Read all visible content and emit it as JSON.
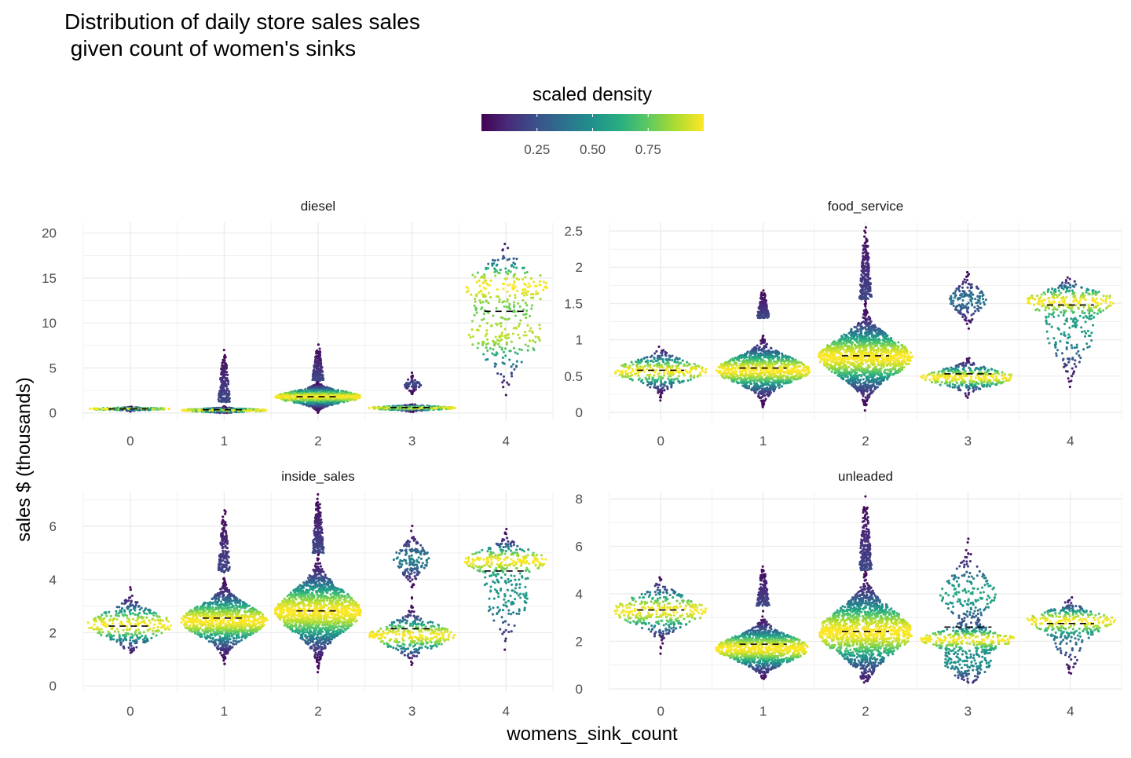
{
  "chart_data": {
    "type": "scatter",
    "subtype": "beeswarm",
    "title_lines": [
      "Distribution of daily store sales sales",
      " given count of women's sinks"
    ],
    "xlabel": "womens_sink_count",
    "ylabel": "sales $ (thousands)",
    "x_categories": [
      "0",
      "1",
      "2",
      "3",
      "4"
    ],
    "legend": {
      "title": "scaled density",
      "placement": "top",
      "colorscale": "viridis",
      "ticks": [
        "0.25",
        "0.50",
        "0.75"
      ],
      "tick_values": [
        0.25,
        0.5,
        0.75
      ],
      "range": [
        0.0,
        1.0
      ]
    },
    "median_line_style": "dashed black",
    "grid": true,
    "panels": [
      {
        "name": "diesel",
        "ylim": [
          -0.9,
          21.2
        ],
        "yticks": [
          0,
          5,
          10,
          15,
          20
        ],
        "groups": [
          {
            "x": "0",
            "median": 0.45,
            "n": 220,
            "modes": [
              {
                "c": 0.45,
                "sd": 0.09,
                "w": 1.0
              }
            ],
            "min": 0.05,
            "max": 0.85,
            "tail": 0,
            "tailTop": 0,
            "halfWidth": 0.45
          },
          {
            "x": "1",
            "median": 0.35,
            "n": 520,
            "modes": [
              {
                "c": 0.3,
                "sd": 0.14,
                "w": 1.0
              }
            ],
            "min": 0.0,
            "max": 1.2,
            "tail": 190,
            "tailTop": 7.0,
            "halfWidth": 0.46
          },
          {
            "x": "2",
            "median": 1.8,
            "n": 1100,
            "modes": [
              {
                "c": 1.8,
                "sd": 0.6,
                "w": 1.0
              }
            ],
            "min": 0.0,
            "max": 3.6,
            "tail": 170,
            "tailTop": 7.6,
            "halfWidth": 0.46
          },
          {
            "x": "3",
            "median": 0.6,
            "n": 420,
            "modes": [
              {
                "c": 0.55,
                "sd": 0.17,
                "w": 0.82
              },
              {
                "c": 3.2,
                "sd": 0.45,
                "w": 0.18
              }
            ],
            "min": 0.05,
            "max": 4.5,
            "tail": 0,
            "tailTop": 0,
            "halfWidth": 0.46
          },
          {
            "x": "4",
            "median": 11.3,
            "n": 360,
            "modes": [
              {
                "c": 14.4,
                "sd": 1.8,
                "w": 0.5
              },
              {
                "c": 8.8,
                "sd": 2.6,
                "w": 0.5
              }
            ],
            "min": 0.4,
            "max": 20.9,
            "tail": 0,
            "tailTop": 0,
            "halfWidth": 0.44
          }
        ]
      },
      {
        "name": "food_service",
        "ylim": [
          -0.12,
          2.62
        ],
        "yticks": [
          0,
          0.5,
          1,
          1.5,
          2,
          2.5
        ],
        "yticklabels": [
          "0",
          "0.5",
          "1",
          "1.5",
          "2",
          "2.5"
        ],
        "groups": [
          {
            "x": "0",
            "median": 0.58,
            "n": 360,
            "modes": [
              {
                "c": 0.57,
                "sd": 0.13,
                "w": 1.0
              }
            ],
            "min": 0.15,
            "max": 0.95,
            "tail": 0,
            "tailTop": 0,
            "halfWidth": 0.46
          },
          {
            "x": "1",
            "median": 0.61,
            "n": 1100,
            "modes": [
              {
                "c": 0.58,
                "sd": 0.17,
                "w": 1.0
              }
            ],
            "min": 0.06,
            "max": 1.3,
            "tail": 180,
            "tailTop": 1.68,
            "halfWidth": 0.46
          },
          {
            "x": "2",
            "median": 0.78,
            "n": 1500,
            "modes": [
              {
                "c": 0.76,
                "sd": 0.25,
                "w": 1.0
              }
            ],
            "min": 0.0,
            "max": 1.55,
            "tail": 230,
            "tailTop": 2.55,
            "halfWidth": 0.46
          },
          {
            "x": "3",
            "median": 0.53,
            "n": 520,
            "modes": [
              {
                "c": 0.48,
                "sd": 0.1,
                "w": 0.72
              },
              {
                "c": 1.55,
                "sd": 0.16,
                "w": 0.28
              }
            ],
            "min": 0.08,
            "max": 1.97,
            "tail": 0,
            "tailTop": 0,
            "halfWidth": 0.46
          },
          {
            "x": "4",
            "median": 1.48,
            "n": 360,
            "modes": [
              {
                "c": 1.55,
                "sd": 0.13,
                "w": 0.6
              },
              {
                "c": 1.1,
                "sd": 0.3,
                "w": 0.4
              }
            ],
            "min": 0.28,
            "max": 2.05,
            "tail": 0,
            "tailTop": 0,
            "halfWidth": 0.44
          }
        ]
      },
      {
        "name": "inside_sales",
        "ylim": [
          -0.2,
          7.3
        ],
        "yticks": [
          0,
          2,
          4,
          6
        ],
        "groups": [
          {
            "x": "0",
            "median": 2.25,
            "n": 330,
            "modes": [
              {
                "c": 2.3,
                "sd": 0.45,
                "w": 1.0
              }
            ],
            "min": 0.7,
            "max": 3.9,
            "tail": 0,
            "tailTop": 0,
            "halfWidth": 0.46
          },
          {
            "x": "1",
            "median": 2.55,
            "n": 1100,
            "modes": [
              {
                "c": 2.45,
                "sd": 0.55,
                "w": 1.0
              }
            ],
            "min": 0.45,
            "max": 4.3,
            "tail": 160,
            "tailTop": 6.6,
            "halfWidth": 0.46
          },
          {
            "x": "2",
            "median": 2.82,
            "n": 1500,
            "modes": [
              {
                "c": 2.8,
                "sd": 0.75,
                "w": 1.0
              }
            ],
            "min": 0.0,
            "max": 5.0,
            "tail": 210,
            "tailTop": 7.2,
            "halfWidth": 0.46
          },
          {
            "x": "3",
            "median": 2.15,
            "n": 520,
            "modes": [
              {
                "c": 1.9,
                "sd": 0.4,
                "w": 0.7
              },
              {
                "c": 4.75,
                "sd": 0.45,
                "w": 0.3
              }
            ],
            "min": 0.55,
            "max": 6.05,
            "tail": 0,
            "tailTop": 0,
            "halfWidth": 0.46
          },
          {
            "x": "4",
            "median": 4.32,
            "n": 360,
            "modes": [
              {
                "c": 4.75,
                "sd": 0.35,
                "w": 0.6
              },
              {
                "c": 3.4,
                "sd": 0.9,
                "w": 0.4
              }
            ],
            "min": 1.1,
            "max": 6.2,
            "tail": 0,
            "tailTop": 0,
            "halfWidth": 0.44
          }
        ]
      },
      {
        "name": "unleaded",
        "ylim": [
          -0.1,
          8.3
        ],
        "yticks": [
          0,
          2,
          4,
          6,
          8
        ],
        "groups": [
          {
            "x": "0",
            "median": 3.32,
            "n": 360,
            "modes": [
              {
                "c": 3.3,
                "sd": 0.55,
                "w": 1.0
              }
            ],
            "min": 1.35,
            "max": 4.7,
            "tail": 0,
            "tailTop": 0,
            "halfWidth": 0.46
          },
          {
            "x": "1",
            "median": 1.88,
            "n": 1100,
            "modes": [
              {
                "c": 1.7,
                "sd": 0.5,
                "w": 1.0
              }
            ],
            "min": 0.35,
            "max": 3.5,
            "tail": 160,
            "tailTop": 5.15,
            "halfWidth": 0.46
          },
          {
            "x": "2",
            "median": 2.42,
            "n": 1500,
            "modes": [
              {
                "c": 2.4,
                "sd": 0.9,
                "w": 1.0
              }
            ],
            "min": 0.25,
            "max": 5.0,
            "tail": 220,
            "tailTop": 8.1,
            "halfWidth": 0.46
          },
          {
            "x": "3",
            "median": 2.6,
            "n": 620,
            "modes": [
              {
                "c": 2.1,
                "sd": 0.3,
                "w": 0.45
              },
              {
                "c": 4.0,
                "sd": 0.8,
                "w": 0.3
              },
              {
                "c": 1.1,
                "sd": 0.5,
                "w": 0.25
              }
            ],
            "min": 0.25,
            "max": 6.4,
            "tail": 0,
            "tailTop": 0,
            "halfWidth": 0.46
          },
          {
            "x": "4",
            "median": 2.75,
            "n": 330,
            "modes": [
              {
                "c": 2.9,
                "sd": 0.35,
                "w": 0.7
              },
              {
                "c": 2.1,
                "sd": 0.7,
                "w": 0.3
              }
            ],
            "min": 0.5,
            "max": 4.1,
            "tail": 0,
            "tailTop": 0,
            "halfWidth": 0.44
          }
        ]
      }
    ]
  }
}
